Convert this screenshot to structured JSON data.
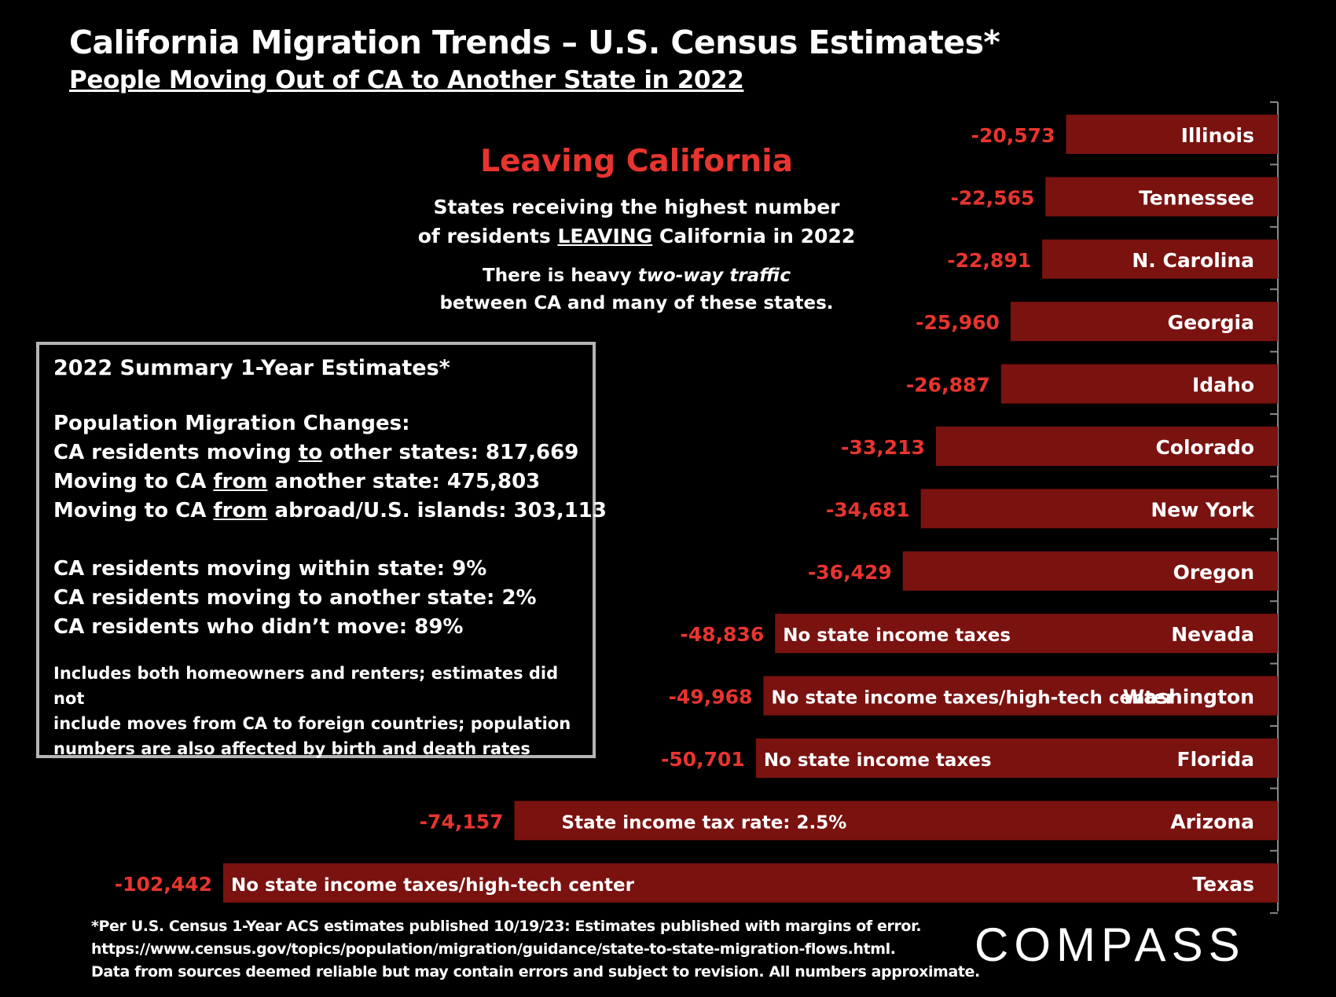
{
  "header": {
    "title": "California Migration Trends – U.S. Census Estimates*",
    "subtitle": "People Moving Out of CA to Another State in 2022"
  },
  "callout": {
    "heading": "Leaving California",
    "line1": "States receiving the highest number",
    "line2_pre": "of residents ",
    "line2_emph": "LEAVING",
    "line2_post": " California in 2022",
    "note_pre": "There is heavy ",
    "note_emph": "two-way traffic",
    "note_line2": "between CA and many of these states."
  },
  "summary": {
    "title": "2022 Summary 1-Year Estimates*",
    "heading": "Population Migration Changes:",
    "l1_pre": "CA residents moving ",
    "l1_u": "to",
    "l1_post": " other states: 817,669",
    "l2_pre": "Moving to CA ",
    "l2_u": "from",
    "l2_post": " another state: 475,803",
    "l3_pre": "Moving to CA ",
    "l3_u": "from",
    "l3_post": " abroad/U.S. islands: 303,113",
    "l4": "CA residents moving within state:  9%",
    "l5": "CA residents moving to another state:  2%",
    "l6": "CA residents who didn’t move:  89%",
    "note1": "Includes both homeowners and renters; estimates did not",
    "note2": "include moves from CA to foreign countries; population",
    "note3": "numbers are also affected by birth and death rates"
  },
  "chart_data": {
    "type": "bar",
    "orientation": "horizontal",
    "title": "People Moving Out of CA to Another State in 2022",
    "value_unit": "people (net loss to CA)",
    "xlim": [
      -110000,
      0
    ],
    "categories": [
      "Illinois",
      "Tennessee",
      "N. Carolina",
      "Georgia",
      "Idaho",
      "Colorado",
      "New York",
      "Oregon",
      "Nevada",
      "Washington",
      "Florida",
      "Arizona",
      "Texas"
    ],
    "values": [
      -20573,
      -22565,
      -22891,
      -25960,
      -26887,
      -33213,
      -34681,
      -36429,
      -48836,
      -49968,
      -50701,
      -74157,
      -102442
    ],
    "value_labels": [
      "-20,573",
      "-22,565",
      "-22,891",
      "-25,960",
      "-26,887",
      "-33,213",
      "-34,681",
      "-36,429",
      "-48,836",
      "-49,968",
      "-50,701",
      "-74,157",
      "-102,442"
    ],
    "annotations": [
      "",
      "",
      "",
      "",
      "",
      "",
      "",
      "",
      "No state income taxes",
      "No state income taxes/high-tech center",
      "No state income taxes",
      "State income tax rate:  2.5%",
      "No state income taxes/high-tech center"
    ]
  },
  "footnote": {
    "line1": "*Per U.S. Census 1-Year ACS estimates published 10/19/23: Estimates published with margins of error.",
    "line2": "https://www.census.gov/topics/population/migration/guidance/state-to-state-migration-flows.html.",
    "line3": "Data from sources deemed reliable but may contain errors and subject to revision. All numbers approximate."
  },
  "brand": {
    "name": "COMPASS"
  },
  "colors": {
    "background": "#000000",
    "bar": "#7a1210",
    "value_label": "#e8342f",
    "heading_red": "#e8342f",
    "text": "#ffffff"
  }
}
